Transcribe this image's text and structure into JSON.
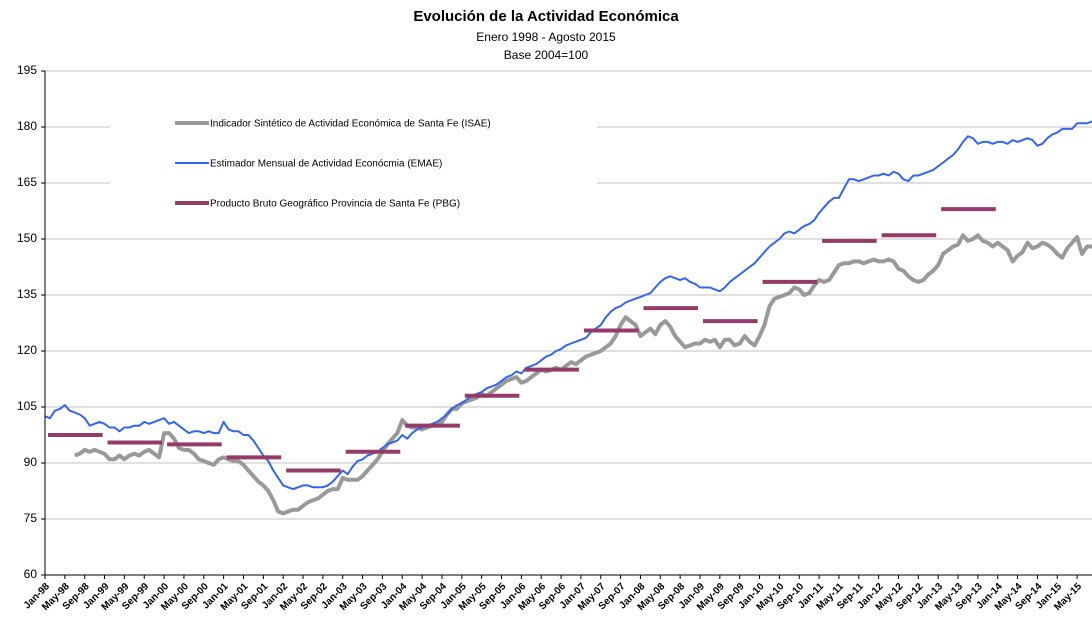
{
  "chart_data": {
    "type": "line",
    "title": "Evolución de la Actividad Económica",
    "subtitle": [
      "Enero 1998 - Agosto 2015",
      "Base 2004=100"
    ],
    "categories": [
      "Jan-98",
      null,
      null,
      null,
      "May-98",
      null,
      null,
      null,
      "Sep-98",
      null,
      null,
      null,
      "Jan-99",
      null,
      null,
      null,
      "May-99",
      null,
      null,
      null,
      "Sep-99",
      null,
      null,
      null,
      "Jan-00",
      null,
      null,
      null,
      "May-00",
      null,
      null,
      null,
      "Sep-00",
      null,
      null,
      null,
      "Jan-01",
      null,
      null,
      null,
      "May-01",
      null,
      null,
      null,
      "Sep-01",
      null,
      null,
      null,
      "Jan-02",
      null,
      null,
      null,
      "May-02",
      null,
      null,
      null,
      "Sep-02",
      null,
      null,
      null,
      "Jan-03",
      null,
      null,
      null,
      "May-03",
      null,
      null,
      null,
      "Sep-03",
      null,
      null,
      null,
      "Jan-04",
      null,
      null,
      null,
      "May-04",
      null,
      null,
      null,
      "Sep-04",
      null,
      null,
      null,
      "Jan-05",
      null,
      null,
      null,
      "May-05",
      null,
      null,
      null,
      "Sep-05",
      null,
      null,
      null,
      "Jan-06",
      null,
      null,
      null,
      "May-06",
      null,
      null,
      null,
      "Sep-06",
      null,
      null,
      null,
      "Jan-07",
      null,
      null,
      null,
      "May-07",
      null,
      null,
      null,
      "Sep-07",
      null,
      null,
      null,
      "Jan-08",
      null,
      null,
      null,
      "May-08",
      null,
      null,
      null,
      "Sep-08",
      null,
      null,
      null,
      "Jan-09",
      null,
      null,
      null,
      "May-09",
      null,
      null,
      null,
      "Sep-09",
      null,
      null,
      null,
      "Jan-10",
      null,
      null,
      null,
      "May-10",
      null,
      null,
      null,
      "Sep-10",
      null,
      null,
      null,
      "Jan-11",
      null,
      null,
      null,
      "May-11",
      null,
      null,
      null,
      "Sep-11",
      null,
      null,
      null,
      "Jan-12",
      null,
      null,
      null,
      "May-12",
      null,
      null,
      null,
      "Sep-12",
      null,
      null,
      null,
      "Jan-13",
      null,
      null,
      null,
      "May-13",
      null,
      null,
      null,
      "Sep-13",
      null,
      null,
      null,
      "Jan-14",
      null,
      null,
      null,
      "May-14",
      null,
      null,
      null,
      "Sep-14",
      null,
      null,
      null,
      "Jan-15",
      null,
      null,
      null,
      "May-15",
      null,
      null,
      null
    ],
    "series": [
      {
        "name": "Indicador Sintético de Actividad Económica de Santa Fe (ISAE)",
        "color": "#999999",
        "style": "line",
        "width": 4,
        "values": [
          null,
          null,
          null,
          null,
          null,
          null,
          92,
          92.5,
          93.5,
          93,
          93.5,
          93,
          92.5,
          91,
          91,
          92,
          91,
          92,
          92.5,
          92,
          93,
          93.5,
          92.5,
          91.5,
          98,
          98,
          96.5,
          94,
          93.5,
          93.5,
          92.5,
          91,
          90.5,
          90,
          89.5,
          91,
          91.5,
          91,
          90.5,
          90.5,
          89.5,
          88,
          86.5,
          85,
          84,
          82.5,
          80,
          77,
          76.5,
          77,
          77.5,
          77.5,
          78.5,
          79.5,
          80,
          80.5,
          81.5,
          82.5,
          83,
          83,
          86,
          85.5,
          85.5,
          85.5,
          86.5,
          88,
          89.5,
          91,
          93,
          95,
          96.5,
          98,
          101.5,
          100,
          99.5,
          99.5,
          99,
          99.5,
          100,
          100,
          101,
          103,
          104.5,
          104.5,
          106,
          106.5,
          107,
          107.5,
          108.5,
          108,
          109,
          110,
          111,
          112,
          112.5,
          113,
          111.5,
          112,
          113,
          114,
          115,
          114.5,
          115,
          115.5,
          115,
          116,
          117,
          116.5,
          117.5,
          118.5,
          119,
          119.5,
          120,
          121,
          122,
          124,
          127,
          129,
          128,
          127,
          124,
          125,
          126,
          124.5,
          127,
          128,
          126.5,
          124,
          122.5,
          121,
          121.5,
          122,
          122,
          123,
          122.5,
          123,
          121,
          123,
          123,
          121.5,
          122,
          124,
          122.5,
          121.5,
          124,
          127,
          132,
          134,
          134.5,
          135,
          135.5,
          137,
          136.5,
          135,
          135.5,
          137.5,
          139,
          138.5,
          139,
          141,
          143,
          143.5,
          143.5,
          144,
          144,
          143.5,
          144,
          144.5,
          144,
          144,
          144.5,
          144,
          142,
          141.5,
          140,
          139,
          138.5,
          139,
          140.5,
          141.5,
          143,
          146,
          147,
          148,
          148.5,
          151,
          149.5,
          150,
          151,
          149.5,
          149,
          148,
          149,
          148,
          147,
          144,
          145.5,
          146.5,
          149,
          147.5,
          148,
          149,
          148.5,
          147.5,
          146,
          145,
          147.5,
          149,
          150.5,
          146,
          148,
          148
        ]
      },
      {
        "name": "Estimador Mensual de Actividad Econócmia (EMAE)",
        "color": "#3366ee",
        "style": "line",
        "width": 2,
        "values": [
          102.5,
          102,
          104,
          104.5,
          105.5,
          104,
          103.5,
          103,
          102,
          100,
          100.5,
          101,
          100.5,
          99.5,
          99.5,
          98.5,
          99.5,
          99.5,
          100,
          100,
          101,
          100.5,
          101,
          101.5,
          102,
          100.5,
          101,
          100,
          99,
          98,
          98.5,
          98.5,
          98,
          98.5,
          98,
          98,
          101,
          99,
          98.5,
          98.5,
          97.5,
          97.5,
          96,
          94,
          92,
          90.5,
          88,
          86,
          84,
          83.5,
          83,
          83.5,
          84,
          84,
          83.5,
          83.5,
          83.5,
          84,
          85,
          86.5,
          88,
          87,
          89,
          90.5,
          91,
          92,
          92.5,
          93,
          94,
          95,
          95.5,
          96,
          97.5,
          96.5,
          98,
          99,
          99.5,
          100,
          100.5,
          101,
          102,
          103,
          104.5,
          105.5,
          106,
          107,
          108,
          108.5,
          109,
          110,
          110.5,
          111,
          112,
          113,
          113.5,
          114.5,
          114,
          115.5,
          116,
          116.5,
          117.5,
          118.5,
          119,
          120,
          120.5,
          121.5,
          122,
          122.5,
          123,
          123.5,
          125,
          126,
          127,
          129,
          130.5,
          131.5,
          132,
          133,
          133.5,
          134,
          134.5,
          135,
          135.5,
          137,
          138.5,
          139.5,
          140,
          139.5,
          139,
          139.5,
          138.5,
          138,
          137,
          137,
          137,
          136.5,
          136,
          137,
          138.5,
          139.5,
          140.5,
          141.5,
          142.5,
          143.5,
          145,
          146.5,
          148,
          149,
          150,
          151.5,
          152,
          151.5,
          152.5,
          153.5,
          154,
          155,
          157,
          158.5,
          160,
          161,
          161,
          163.5,
          166,
          166,
          165.5,
          166,
          166.5,
          167,
          167,
          167.5,
          167,
          168,
          167.5,
          166,
          165.5,
          167,
          167,
          167.5,
          168,
          168.5,
          169.5,
          170.5,
          171.5,
          172.5,
          174,
          176,
          177.5,
          177,
          175.5,
          176,
          176,
          175.5,
          176,
          176,
          175.5,
          176.5,
          176,
          176.5,
          177,
          176.5,
          175,
          175.5,
          177,
          178,
          178.5,
          179.5,
          179.5,
          179.5,
          181,
          181,
          181,
          181.5
        ]
      },
      {
        "name": "Producto Bruto Geográfico Provincia de Santa Fe (PBG)",
        "color": "#943b69",
        "style": "annual",
        "width": 4,
        "values": [
          97.5,
          null,
          null,
          null,
          null,
          null,
          null,
          null,
          null,
          null,
          null,
          null,
          95.5,
          null,
          null,
          null,
          null,
          null,
          null,
          null,
          null,
          null,
          null,
          null,
          95,
          null,
          null,
          null,
          null,
          null,
          null,
          null,
          null,
          null,
          null,
          null,
          91.5,
          null,
          null,
          null,
          null,
          null,
          null,
          null,
          null,
          null,
          null,
          null,
          88,
          null,
          null,
          null,
          null,
          null,
          null,
          null,
          null,
          null,
          null,
          null,
          93,
          null,
          null,
          null,
          null,
          null,
          null,
          null,
          null,
          null,
          null,
          null,
          100,
          null,
          null,
          null,
          null,
          null,
          null,
          null,
          null,
          null,
          null,
          null,
          108,
          null,
          null,
          null,
          null,
          null,
          null,
          null,
          null,
          null,
          null,
          null,
          115,
          null,
          null,
          null,
          null,
          null,
          null,
          null,
          null,
          null,
          null,
          null,
          125.5,
          null,
          null,
          null,
          null,
          null,
          null,
          null,
          null,
          null,
          null,
          null,
          131.5,
          null,
          null,
          null,
          null,
          null,
          null,
          null,
          null,
          null,
          null,
          null,
          128,
          null,
          null,
          null,
          null,
          null,
          null,
          null,
          null,
          null,
          null,
          null,
          138.5,
          null,
          null,
          null,
          null,
          null,
          null,
          null,
          null,
          null,
          null,
          null,
          149.5,
          null,
          null,
          null,
          null,
          null,
          null,
          null,
          null,
          null,
          null,
          null,
          151,
          null,
          null,
          null,
          null,
          null,
          null,
          null,
          null,
          null,
          null,
          null,
          158,
          null,
          null,
          null,
          null,
          null,
          null,
          null,
          null,
          null,
          null,
          null,
          null,
          null,
          null,
          null,
          null,
          null,
          null,
          null,
          null,
          null,
          null,
          null,
          null,
          null,
          null,
          null,
          null,
          null,
          null,
          null
        ]
      }
    ],
    "ylim": [
      60,
      195
    ],
    "yticks": [
      60,
      75,
      90,
      105,
      120,
      135,
      150,
      165,
      180,
      195
    ],
    "grid": true,
    "legend": "upper left"
  }
}
